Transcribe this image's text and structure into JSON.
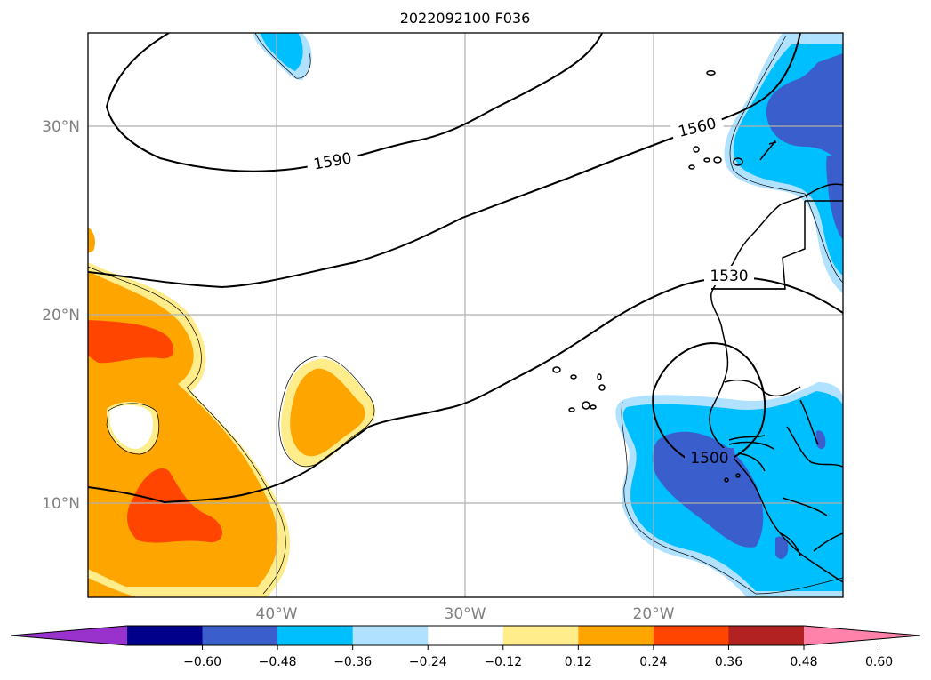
{
  "title": "2022092100 F036",
  "map": {
    "lon_ticks": [
      "40°W",
      "30°W",
      "20°W"
    ],
    "lat_ticks": [
      "30°N",
      "20°N",
      "10°N"
    ],
    "gridlines": true
  },
  "contour_labels": [
    "1590",
    "1560",
    "1530",
    "1500"
  ],
  "colorbar": {
    "ticks": [
      "−0.60",
      "−0.48",
      "−0.36",
      "−0.24",
      "−0.12",
      "0.12",
      "0.24",
      "0.36",
      "0.48",
      "0.60"
    ],
    "colors": [
      "#9932cc",
      "#00008b",
      "#3a5fcd",
      "#00bfff",
      "#b0e2ff",
      "#ffffff",
      "#ffec8b",
      "#ffa500",
      "#ff4500",
      "#b22222",
      "#ff82ab"
    ],
    "extend": "both"
  },
  "colors": {
    "yellow": "#ffec8b",
    "orange": "#ffa500",
    "red_orange": "#ff4500",
    "light_blue": "#b0e2ff",
    "sky_blue": "#00bfff",
    "royal_blue": "#3a5fcd"
  }
}
